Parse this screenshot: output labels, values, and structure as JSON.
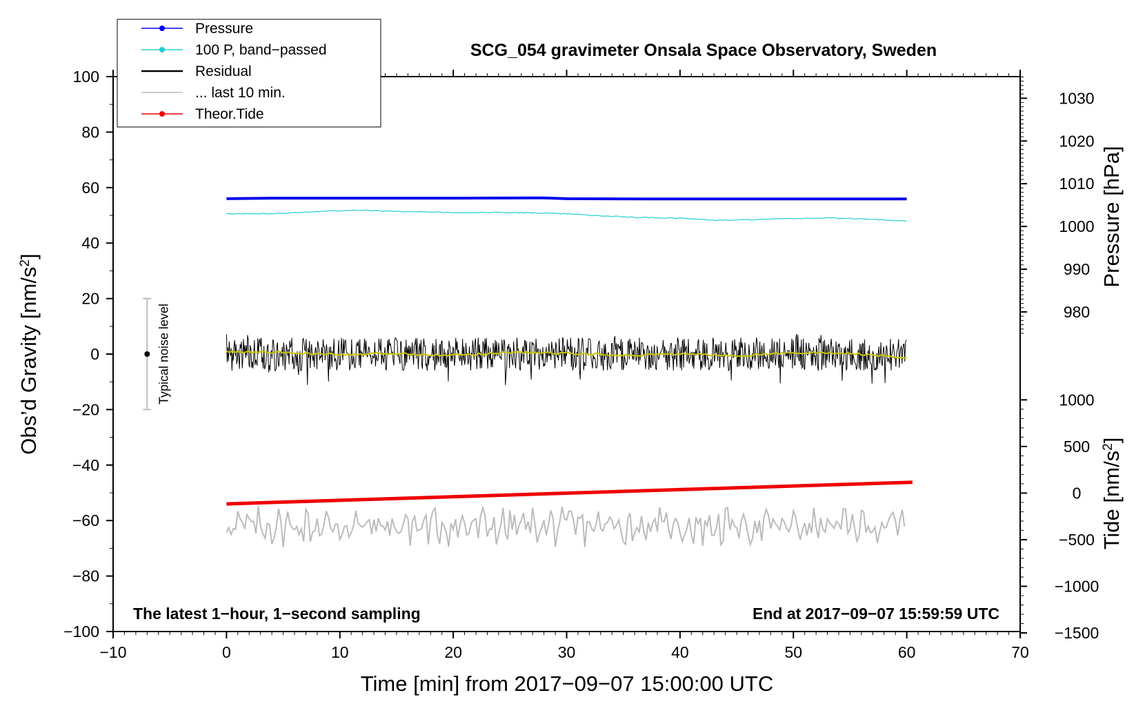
{
  "chart_data": {
    "type": "line",
    "title": "SCG_054 gravimeter Onsala Space Observatory, Sweden",
    "xlabel": "Time [min] from 2017−09−07 15:00:00 UTC",
    "ylabel": "Obs’d Gravity [nm/s²]",
    "ylabel_parts": {
      "base": "Obs’d Gravity [nm/s",
      "sup": "2",
      "end": "]"
    },
    "xlim": [
      -10,
      70
    ],
    "ylim": [
      -100,
      100
    ],
    "x_ticks": [
      {
        "v": -10,
        "label": "−10"
      },
      {
        "v": 0,
        "label": "0"
      },
      {
        "v": 10,
        "label": "10"
      },
      {
        "v": 20,
        "label": "20"
      },
      {
        "v": 30,
        "label": "30"
      },
      {
        "v": 40,
        "label": "40"
      },
      {
        "v": 50,
        "label": "50"
      },
      {
        "v": 60,
        "label": "60"
      },
      {
        "v": 70,
        "label": "70"
      }
    ],
    "y_ticks": [
      {
        "v": 100,
        "label": "100"
      },
      {
        "v": 80,
        "label": "80"
      },
      {
        "v": 60,
        "label": "60"
      },
      {
        "v": 40,
        "label": "40"
      },
      {
        "v": 20,
        "label": "20"
      },
      {
        "v": 0,
        "label": "0"
      },
      {
        "v": -20,
        "label": "−20"
      },
      {
        "v": -40,
        "label": "−40"
      },
      {
        "v": -60,
        "label": "−60"
      },
      {
        "v": -80,
        "label": "−80"
      },
      {
        "v": -100,
        "label": "−100"
      }
    ],
    "pressure_axis": {
      "label": "Pressure [hPa]",
      "ticks": [
        {
          "v": 1030,
          "label": "1030"
        },
        {
          "v": 1020,
          "label": "1020"
        },
        {
          "v": 1010,
          "label": "1010"
        },
        {
          "v": 1000,
          "label": "1000"
        },
        {
          "v": 990,
          "label": "990"
        },
        {
          "v": 980,
          "label": "980"
        }
      ],
      "ref_hpa": 1000,
      "ref_gravity": 46,
      "gravity_per_hpa": 1.54
    },
    "tide_axis": {
      "label_parts": {
        "base": "Tide [nm/s",
        "sup": "2",
        "end": "]"
      },
      "ticks": [
        {
          "v": 1000,
          "label": "1000"
        },
        {
          "v": 500,
          "label": "500"
        },
        {
          "v": 0,
          "label": "0"
        },
        {
          "v": -500,
          "label": "−500"
        },
        {
          "v": -1000,
          "label": "−1000"
        },
        {
          "v": -1500,
          "label": "−1500"
        }
      ],
      "gravity_per_unit": 0.0336,
      "offset": -50.1
    },
    "legend": [
      {
        "name": "Pressure",
        "color": "#0000ee",
        "marker": true
      },
      {
        "name": "100 P, band−passed",
        "color": "#20d0d0",
        "marker": true
      },
      {
        "name": "Residual",
        "color": "#000000",
        "marker": false
      },
      {
        "name": "... last 10 min.",
        "color": "#bbbbbb",
        "marker": false
      },
      {
        "name": "Theor.Tide",
        "color": "#ee0000",
        "marker": true
      }
    ],
    "legend_position": "top-left, outside",
    "series": [
      {
        "name": "Pressure",
        "color": "#0000ee",
        "x": [
          0,
          4,
          10,
          20,
          28,
          30,
          37,
          45,
          55,
          60
        ],
        "values": [
          56.0,
          56.2,
          56.2,
          56.2,
          56.3,
          56.0,
          55.9,
          55.9,
          55.9,
          55.9
        ]
      },
      {
        "name": "100 P, band−passed",
        "color": "#20d0d0",
        "x": [
          0,
          3,
          5,
          8,
          11,
          13,
          16,
          20,
          25,
          28,
          30,
          33,
          36,
          40,
          43,
          46,
          50,
          53,
          56,
          60
        ],
        "values": [
          50.5,
          50.6,
          50.8,
          51.4,
          51.9,
          51.7,
          51.3,
          51.0,
          51.0,
          50.8,
          50.5,
          49.8,
          49.3,
          49.0,
          48.2,
          48.4,
          48.8,
          49.1,
          48.7,
          48.0
        ]
      },
      {
        "name": "Residual",
        "color": "#000000",
        "x": [
          0,
          60
        ],
        "values": [
          0,
          0
        ],
        "noise_amplitude": 6
      },
      {
        "name": "Residual, smoothed",
        "color": "#c8c800",
        "x": [
          0,
          5,
          10,
          15,
          20,
          25,
          30,
          35,
          40,
          45,
          50,
          55,
          60
        ],
        "values": [
          0.8,
          0.5,
          -0.3,
          0.2,
          -0.4,
          0.6,
          0.3,
          -0.5,
          0.1,
          -0.6,
          0.5,
          0.3,
          -1.5
        ]
      },
      {
        "name": "... last 10 min.",
        "color": "#bbbbbb",
        "x": [
          0,
          60
        ],
        "baseline": -62,
        "noise_amplitude": 5
      },
      {
        "name": "Theor.Tide",
        "color": "#ee0000",
        "x": [
          0,
          60.5
        ],
        "values": [
          -54.0,
          -46.2
        ]
      }
    ],
    "noise_bar": {
      "x": -7,
      "y_min": -20,
      "y_max": 20,
      "center": 0,
      "label": "Typical noise level"
    },
    "annotations": {
      "bottom_left": "The latest 1−hour, 1−second sampling",
      "bottom_right": "End at 2017−09−07 15:59:59 UTC"
    }
  }
}
